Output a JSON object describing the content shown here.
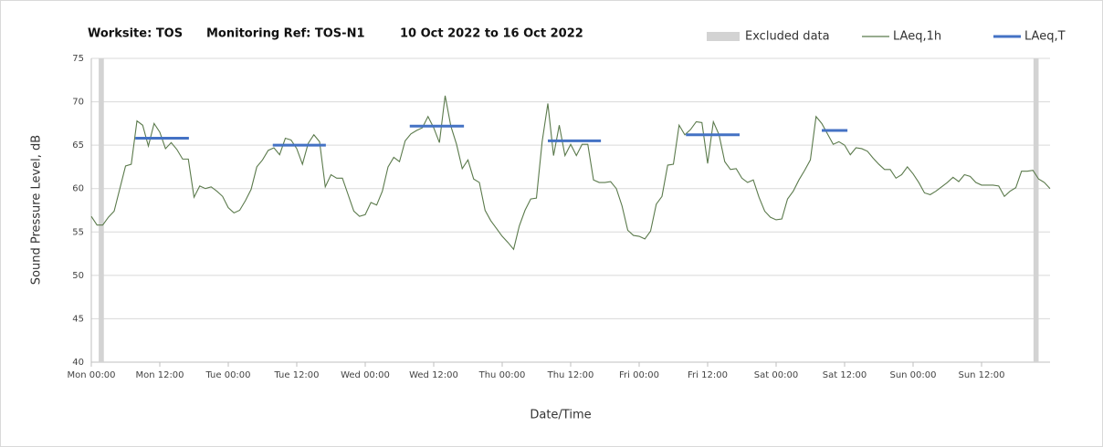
{
  "chart_data": {
    "type": "line",
    "title": [
      "Worksite: TOS",
      "Monitoring Ref: TOS-N1",
      "10 Oct 2022 to 16 Oct 2022"
    ],
    "ylabel": "Sound Pressure Level, dB",
    "xlabel": "Date/Time",
    "xlim": [
      0,
      168
    ],
    "ylim": [
      40,
      75
    ],
    "yticks": [
      40,
      45,
      50,
      55,
      60,
      65,
      70,
      75
    ],
    "xticks": [
      {
        "value": 0,
        "label": "Mon 00:00"
      },
      {
        "value": 12,
        "label": "Mon 12:00"
      },
      {
        "value": 24,
        "label": "Tue 00:00"
      },
      {
        "value": 36,
        "label": "Tue 12:00"
      },
      {
        "value": 48,
        "label": "Wed 00:00"
      },
      {
        "value": 60,
        "label": "Wed 12:00"
      },
      {
        "value": 72,
        "label": "Thu 00:00"
      },
      {
        "value": 84,
        "label": "Thu 12:00"
      },
      {
        "value": 96,
        "label": "Fri 00:00"
      },
      {
        "value": 108,
        "label": "Fri 12:00"
      },
      {
        "value": 120,
        "label": "Sat 00:00"
      },
      {
        "value": 132,
        "label": "Sat 12:00"
      },
      {
        "value": 144,
        "label": "Sun 00:00"
      },
      {
        "value": 156,
        "label": "Sun 12:00"
      }
    ],
    "grid": true,
    "legend": "top-right",
    "excluded": {
      "name": "Excluded data",
      "color": "#d3d3d3",
      "ranges": [
        [
          1.3,
          2.2
        ],
        [
          165.1,
          166
        ]
      ]
    },
    "series": [
      {
        "name": "LAeq,1h",
        "color": "#5b7a4c",
        "x": [
          0,
          1,
          2,
          3,
          4,
          5,
          6,
          7,
          8,
          9,
          10,
          11,
          12,
          13,
          14,
          15,
          16,
          17,
          18,
          19,
          20,
          21,
          22,
          23,
          24,
          25,
          26,
          27,
          28,
          29,
          30,
          31,
          32,
          33,
          34,
          35,
          36,
          37,
          38,
          39,
          40,
          41,
          42,
          43,
          44,
          45,
          46,
          47,
          48,
          49,
          50,
          51,
          52,
          53,
          54,
          55,
          56,
          57,
          58,
          59,
          60,
          61,
          62,
          63,
          64,
          65,
          66,
          67,
          68,
          69,
          70,
          71,
          72,
          73,
          74,
          75,
          76,
          77,
          78,
          79,
          80,
          81,
          82,
          83,
          84,
          85,
          86,
          87,
          88,
          89,
          90,
          91,
          92,
          93,
          94,
          95,
          96,
          97,
          98,
          99,
          100,
          101,
          102,
          103,
          104,
          105,
          106,
          107,
          108,
          109,
          110,
          111,
          112,
          113,
          114,
          115,
          116,
          117,
          118,
          119,
          120,
          121,
          122,
          123,
          124,
          125,
          126,
          127,
          128,
          129,
          130,
          131,
          132,
          133,
          134,
          135,
          136,
          137,
          138,
          139,
          140,
          141,
          142,
          143,
          144,
          145,
          146,
          147,
          148,
          149,
          150,
          151,
          152,
          153,
          154,
          155,
          156,
          157,
          158,
          159,
          160,
          161,
          162,
          163,
          164,
          165,
          166,
          167,
          168
        ],
        "values": [
          56.8,
          55.8,
          55.8,
          56.7,
          57.4,
          60,
          62.6,
          62.8,
          67.8,
          67.3,
          64.9,
          67.5,
          66.5,
          64.6,
          65.3,
          64.5,
          63.4,
          63.4,
          59,
          60.3,
          60,
          60.2,
          59.7,
          59.1,
          57.8,
          57.2,
          57.5,
          58.6,
          59.9,
          62.5,
          63.3,
          64.4,
          64.7,
          63.9,
          65.8,
          65.6,
          64.6,
          62.8,
          65.2,
          66.2,
          65.4,
          60.2,
          61.6,
          61.2,
          61.2,
          59.3,
          57.4,
          56.8,
          57,
          58.4,
          58.1,
          59.7,
          62.5,
          63.6,
          63.1,
          65.5,
          66.3,
          66.7,
          67,
          68.3,
          67,
          65.3,
          70.7,
          67.2,
          65.1,
          62.3,
          63.3,
          61.1,
          60.7,
          57.5,
          56.3,
          55.4,
          54.5,
          53.8,
          53,
          55.7,
          57.5,
          58.8,
          58.9,
          65.4,
          69.8,
          63.8,
          67.3,
          63.8,
          65.1,
          63.8,
          65.1,
          65.1,
          61,
          60.7,
          60.7,
          60.8,
          60,
          58,
          55.2,
          54.6,
          54.5,
          54.2,
          55.1,
          58.2,
          59.1,
          62.7,
          62.8,
          67.3,
          66.2,
          66.8,
          67.7,
          67.6,
          62.9,
          67.7,
          66.2,
          63.1,
          62.2,
          62.3,
          61.2,
          60.7,
          61,
          59,
          57.4,
          56.7,
          56.4,
          56.5,
          58.8,
          59.7,
          61,
          62.1,
          63.3,
          68.3,
          67.5,
          66.3,
          65.1,
          65.4,
          65,
          63.9,
          64.7,
          64.6,
          64.3,
          63.5,
          62.8,
          62.2,
          62.2,
          61.2,
          61.6,
          62.5,
          61.7,
          60.7,
          59.5,
          59.3,
          59.7,
          60.2,
          60.7,
          61.3,
          60.8,
          61.6,
          61.4,
          60.7,
          60.4,
          60.4,
          60.4,
          60.3,
          59.1,
          59.7,
          60.1,
          62,
          62,
          62.1,
          61.1,
          60.7,
          60
        ]
      },
      {
        "name": "LAeq,T",
        "color": "#4472c4",
        "segments": [
          {
            "start": 7.7,
            "end": 17.1,
            "value": 65.8
          },
          {
            "start": 31.8,
            "end": 41.1,
            "value": 65
          },
          {
            "start": 55.8,
            "end": 65.3,
            "value": 67.2
          },
          {
            "start": 80,
            "end": 89.3,
            "value": 65.5
          },
          {
            "start": 104.2,
            "end": 113.6,
            "value": 66.2
          },
          {
            "start": 128,
            "end": 132.5,
            "value": 66.7
          }
        ]
      }
    ]
  }
}
